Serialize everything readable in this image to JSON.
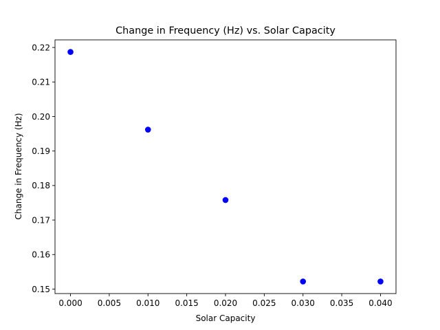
{
  "chart_data": {
    "type": "scatter",
    "title": "Change in Frequency (Hz) vs. Solar Capacity",
    "xlabel": "Solar Capacity",
    "ylabel": "Change in Frequency (Hz)",
    "xlim": [
      -0.002,
      0.042
    ],
    "ylim": [
      0.1487,
      0.2222
    ],
    "xticks": [
      0.0,
      0.005,
      0.01,
      0.015,
      0.02,
      0.025,
      0.03,
      0.035,
      0.04
    ],
    "xtick_labels": [
      "0.000",
      "0.005",
      "0.010",
      "0.015",
      "0.020",
      "0.025",
      "0.030",
      "0.035",
      "0.040"
    ],
    "yticks": [
      0.15,
      0.16,
      0.17,
      0.18,
      0.19,
      0.2,
      0.21,
      0.22
    ],
    "ytick_labels": [
      "0.15",
      "0.16",
      "0.17",
      "0.18",
      "0.19",
      "0.20",
      "0.21",
      "0.22"
    ],
    "grid": false,
    "series": [
      {
        "color": "#0000ff",
        "marker": "circle",
        "x": [
          0.0,
          0.01,
          0.02,
          0.03,
          0.04
        ],
        "y": [
          0.2187,
          0.1962,
          0.1758,
          0.1522,
          0.1522
        ]
      }
    ]
  }
}
